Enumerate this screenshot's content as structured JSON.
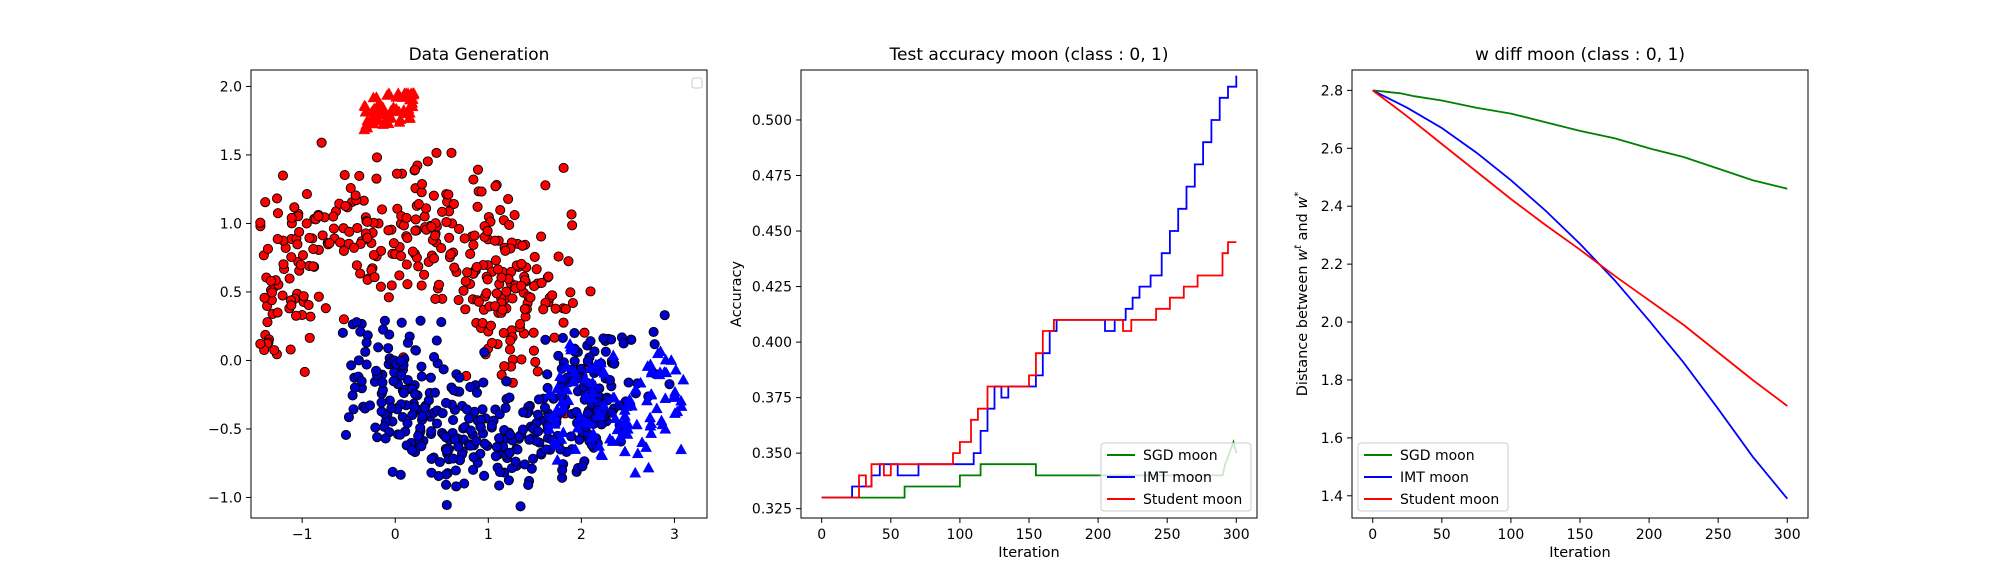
{
  "chart_data": [
    {
      "type": "scatter",
      "title": "Data Generation",
      "xlabel": "",
      "ylabel": "",
      "xlim": [
        -1.55,
        3.35
      ],
      "ylim": [
        -1.15,
        2.12
      ],
      "xticks": [
        -1,
        0,
        1,
        2,
        3
      ],
      "xtick_labels": [
        "−1",
        "0",
        "1",
        "2",
        "3"
      ],
      "yticks": [
        -1.0,
        -0.5,
        0.0,
        0.5,
        1.0,
        1.5,
        2.0
      ],
      "ytick_labels": [
        "−1.0",
        "−0.5",
        "0.0",
        "0.5",
        "1.0",
        "1.5",
        "2.0"
      ],
      "grid": false,
      "legend": {
        "position": "top-right",
        "entries": []
      },
      "groups": [
        {
          "label": "",
          "marker": "circle",
          "color": "#ff0000",
          "edge": "#000000",
          "count": 420,
          "approx_region": "upper moon: x -1.4 to 1.4, y -0.4 to 1.55"
        },
        {
          "label": "",
          "marker": "circle",
          "color": "#0000cd",
          "edge": "#000000",
          "count": 420,
          "approx_region": "lower moon: x -0.3 to 2.5, y -1.0 to 0.8"
        },
        {
          "label": "",
          "marker": "triangle",
          "color": "#ff0000",
          "edge": "#ff0000",
          "count": 60,
          "approx_region": "cluster near x -0.35 to 0.2, y 1.65 to 1.95"
        },
        {
          "label": "",
          "marker": "triangle",
          "color": "#0000ff",
          "edge": "#0000ff",
          "count": 110,
          "approx_region": "cluster near x 1.6 to 3.1, y -0.85 to 0.15"
        }
      ]
    },
    {
      "type": "line",
      "title": "Test accuracy moon (class : 0, 1)",
      "xlabel": "Iteration",
      "ylabel": "Accuracy",
      "xlim": [
        -15,
        315
      ],
      "ylim": [
        0.3208,
        0.5225
      ],
      "xticks": [
        0,
        50,
        100,
        150,
        200,
        250,
        300
      ],
      "xtick_labels": [
        "0",
        "50",
        "100",
        "150",
        "200",
        "250",
        "300"
      ],
      "yticks": [
        0.325,
        0.35,
        0.375,
        0.4,
        0.425,
        0.45,
        0.475,
        0.5
      ],
      "ytick_labels": [
        "0.325",
        "0.350",
        "0.375",
        "0.400",
        "0.425",
        "0.450",
        "0.475",
        "0.500"
      ],
      "grid": false,
      "legend": {
        "position": "bottom-right"
      },
      "series": [
        {
          "name": "SGD moon",
          "color": "#008000",
          "step": true,
          "points": [
            [
              0,
              0.33
            ],
            [
              60,
              0.33
            ],
            [
              60,
              0.335
            ],
            [
              100,
              0.335
            ],
            [
              100,
              0.34
            ],
            [
              115,
              0.34
            ],
            [
              115,
              0.345
            ],
            [
              155,
              0.345
            ],
            [
              155,
              0.34
            ],
            [
              290,
              0.34
            ],
            [
              292,
              0.345
            ],
            [
              295,
              0.35
            ],
            [
              298,
              0.355
            ],
            [
              300,
              0.35
            ]
          ]
        },
        {
          "name": "IMT moon",
          "color": "#0000ff",
          "step": true,
          "points": [
            [
              0,
              0.33
            ],
            [
              22,
              0.33
            ],
            [
              22,
              0.335
            ],
            [
              36,
              0.335
            ],
            [
              36,
              0.34
            ],
            [
              42,
              0.34
            ],
            [
              42,
              0.345
            ],
            [
              55,
              0.345
            ],
            [
              55,
              0.34
            ],
            [
              70,
              0.34
            ],
            [
              70,
              0.345
            ],
            [
              110,
              0.345
            ],
            [
              110,
              0.35
            ],
            [
              115,
              0.35
            ],
            [
              115,
              0.36
            ],
            [
              120,
              0.36
            ],
            [
              120,
              0.37
            ],
            [
              125,
              0.37
            ],
            [
              125,
              0.38
            ],
            [
              130,
              0.38
            ],
            [
              130,
              0.375
            ],
            [
              135,
              0.375
            ],
            [
              135,
              0.38
            ],
            [
              155,
              0.38
            ],
            [
              155,
              0.385
            ],
            [
              160,
              0.385
            ],
            [
              160,
              0.395
            ],
            [
              165,
              0.395
            ],
            [
              165,
              0.405
            ],
            [
              170,
              0.405
            ],
            [
              170,
              0.41
            ],
            [
              205,
              0.41
            ],
            [
              205,
              0.405
            ],
            [
              212,
              0.405
            ],
            [
              212,
              0.41
            ],
            [
              220,
              0.41
            ],
            [
              220,
              0.415
            ],
            [
              225,
              0.415
            ],
            [
              225,
              0.42
            ],
            [
              230,
              0.42
            ],
            [
              230,
              0.425
            ],
            [
              238,
              0.425
            ],
            [
              238,
              0.43
            ],
            [
              246,
              0.43
            ],
            [
              246,
              0.44
            ],
            [
              252,
              0.44
            ],
            [
              252,
              0.45
            ],
            [
              258,
              0.45
            ],
            [
              258,
              0.46
            ],
            [
              264,
              0.46
            ],
            [
              264,
              0.47
            ],
            [
              270,
              0.47
            ],
            [
              270,
              0.48
            ],
            [
              276,
              0.48
            ],
            [
              276,
              0.49
            ],
            [
              282,
              0.49
            ],
            [
              282,
              0.5
            ],
            [
              288,
              0.5
            ],
            [
              288,
              0.51
            ],
            [
              294,
              0.51
            ],
            [
              294,
              0.515
            ],
            [
              300,
              0.515
            ],
            [
              300,
              0.52
            ]
          ]
        },
        {
          "name": "Student moon",
          "color": "#ff0000",
          "step": true,
          "points": [
            [
              0,
              0.33
            ],
            [
              27,
              0.33
            ],
            [
              27,
              0.34
            ],
            [
              32,
              0.34
            ],
            [
              32,
              0.335
            ],
            [
              36,
              0.335
            ],
            [
              36,
              0.345
            ],
            [
              45,
              0.345
            ],
            [
              45,
              0.34
            ],
            [
              50,
              0.34
            ],
            [
              50,
              0.345
            ],
            [
              95,
              0.345
            ],
            [
              95,
              0.35
            ],
            [
              100,
              0.35
            ],
            [
              100,
              0.355
            ],
            [
              108,
              0.355
            ],
            [
              108,
              0.365
            ],
            [
              113,
              0.365
            ],
            [
              113,
              0.37
            ],
            [
              120,
              0.37
            ],
            [
              120,
              0.38
            ],
            [
              150,
              0.38
            ],
            [
              150,
              0.385
            ],
            [
              155,
              0.385
            ],
            [
              155,
              0.395
            ],
            [
              160,
              0.395
            ],
            [
              160,
              0.405
            ],
            [
              168,
              0.405
            ],
            [
              168,
              0.41
            ],
            [
              218,
              0.41
            ],
            [
              218,
              0.405
            ],
            [
              224,
              0.405
            ],
            [
              224,
              0.41
            ],
            [
              242,
              0.41
            ],
            [
              242,
              0.415
            ],
            [
              252,
              0.415
            ],
            [
              252,
              0.42
            ],
            [
              262,
              0.42
            ],
            [
              262,
              0.425
            ],
            [
              272,
              0.425
            ],
            [
              272,
              0.43
            ],
            [
              290,
              0.43
            ],
            [
              290,
              0.44
            ],
            [
              294,
              0.44
            ],
            [
              294,
              0.445
            ],
            [
              300,
              0.445
            ]
          ]
        }
      ]
    },
    {
      "type": "line",
      "title": "w diff moon (class : 0, 1)",
      "xlabel": "Iteration",
      "ylabel": "Distance between w^t and w^*",
      "ylabel_parts": {
        "prefix": "Distance between ",
        "w1": "w",
        "sup1": "t",
        "mid": " and ",
        "w2": "w",
        "sup2": "*"
      },
      "xlim": [
        -15,
        315
      ],
      "ylim": [
        1.3233,
        2.8704
      ],
      "xticks": [
        0,
        50,
        100,
        150,
        200,
        250,
        300
      ],
      "xtick_labels": [
        "0",
        "50",
        "100",
        "150",
        "200",
        "250",
        "300"
      ],
      "yticks": [
        1.4,
        1.6,
        1.8,
        2.0,
        2.2,
        2.4,
        2.6,
        2.8
      ],
      "ytick_labels": [
        "1.4",
        "1.6",
        "1.8",
        "2.0",
        "2.2",
        "2.4",
        "2.6",
        "2.8"
      ],
      "grid": false,
      "legend": {
        "position": "bottom-left"
      },
      "series": [
        {
          "name": "SGD moon",
          "color": "#008000",
          "points": [
            [
              0,
              2.8
            ],
            [
              10,
              2.795
            ],
            [
              20,
              2.79
            ],
            [
              30,
              2.78
            ],
            [
              50,
              2.765
            ],
            [
              75,
              2.74
            ],
            [
              100,
              2.72
            ],
            [
              125,
              2.69
            ],
            [
              150,
              2.66
            ],
            [
              175,
              2.635
            ],
            [
              200,
              2.6
            ],
            [
              225,
              2.57
            ],
            [
              250,
              2.53
            ],
            [
              275,
              2.49
            ],
            [
              300,
              2.46
            ]
          ]
        },
        {
          "name": "IMT moon",
          "color": "#0000ff",
          "points": [
            [
              0,
              2.8
            ],
            [
              25,
              2.74
            ],
            [
              50,
              2.67
            ],
            [
              75,
              2.585
            ],
            [
              100,
              2.49
            ],
            [
              125,
              2.385
            ],
            [
              150,
              2.27
            ],
            [
              175,
              2.145
            ],
            [
              200,
              2.005
            ],
            [
              225,
              1.86
            ],
            [
              250,
              1.7
            ],
            [
              275,
              1.535
            ],
            [
              300,
              1.39
            ]
          ]
        },
        {
          "name": "Student moon",
          "color": "#ff0000",
          "points": [
            [
              0,
              2.8
            ],
            [
              25,
              2.71
            ],
            [
              50,
              2.615
            ],
            [
              75,
              2.52
            ],
            [
              100,
              2.425
            ],
            [
              125,
              2.335
            ],
            [
              150,
              2.25
            ],
            [
              175,
              2.16
            ],
            [
              200,
              2.075
            ],
            [
              225,
              1.99
            ],
            [
              250,
              1.895
            ],
            [
              275,
              1.8
            ],
            [
              300,
              1.71
            ]
          ]
        }
      ]
    }
  ]
}
